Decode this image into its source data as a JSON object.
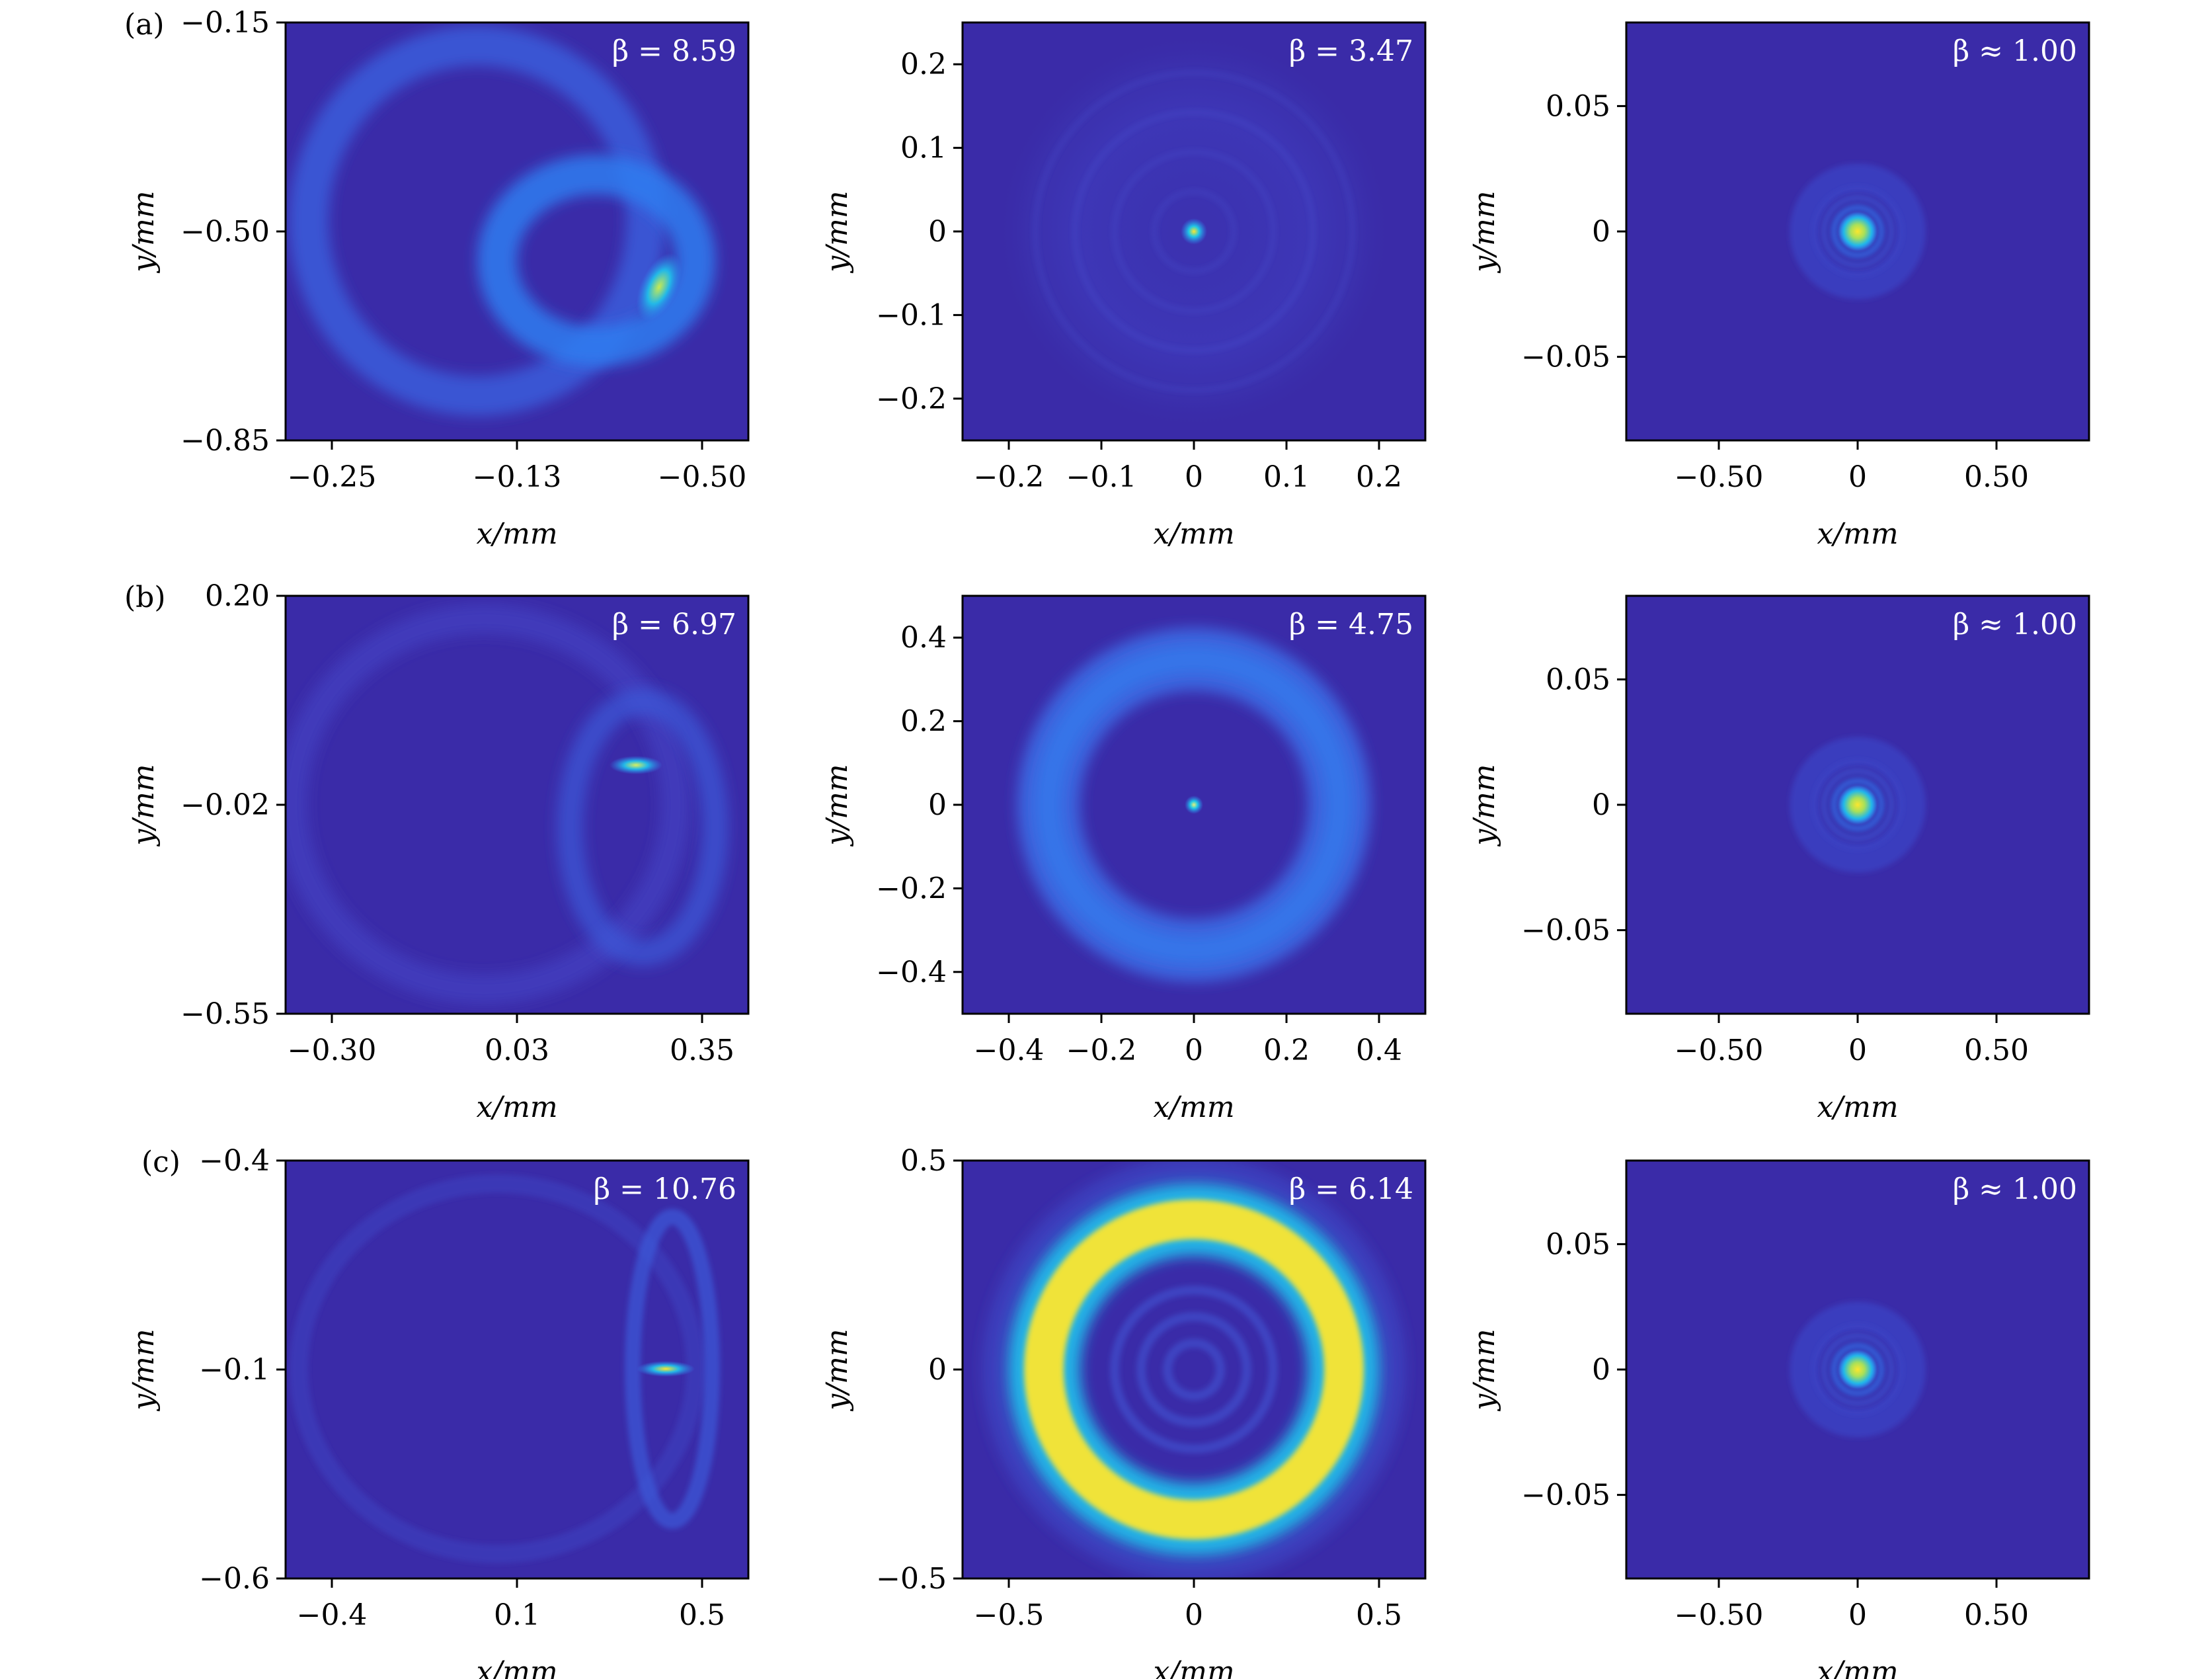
{
  "figure": {
    "row_labels": [
      "(a)",
      "(b)",
      "(c)"
    ],
    "colors": {
      "background": "#3a2ba8",
      "ring_mid": "#2f8cf7",
      "ring_bright": "#1ec8e6",
      "peak": "#fbe62e",
      "axis": "#000000",
      "label_text_on_plot": "#ffffff"
    }
  },
  "chart_data": [
    {
      "type": "heatmap",
      "row": "(a)",
      "col": 1,
      "annotation": "β = 8.59",
      "xlabel": "x/mm",
      "ylabel": "y/mm",
      "xticks": [
        "−0.25",
        "−0.13",
        "−0.50"
      ],
      "yticks": [
        "−0.15",
        "−0.50",
        "−0.85"
      ],
      "pattern": "crescent"
    },
    {
      "type": "heatmap",
      "row": "(a)",
      "col": 2,
      "annotation": "β = 3.47",
      "xlabel": "x/mm",
      "ylabel": "y/mm",
      "xticks": [
        "−0.2",
        "−0.1",
        "0",
        "0.1",
        "0.2"
      ],
      "yticks": [
        "0.2",
        "0.1",
        "0",
        "−0.1",
        "−0.2"
      ],
      "pattern": "faint-disk"
    },
    {
      "type": "heatmap",
      "row": "(a)",
      "col": 3,
      "annotation": "β ≈ 1.00",
      "xlabel": "x/mm",
      "ylabel": "y/mm",
      "xticks": [
        "−0.50",
        "0",
        "0.50"
      ],
      "yticks": [
        "0.05",
        "0",
        "−0.05"
      ],
      "pattern": "airy"
    },
    {
      "type": "heatmap",
      "row": "(b)",
      "col": 1,
      "annotation": "β = 6.97",
      "xlabel": "x/mm",
      "ylabel": "y/mm",
      "xticks": [
        "−0.30",
        "0.03",
        "0.35"
      ],
      "yticks": [
        "0.20",
        "−0.02",
        "−0.55"
      ],
      "pattern": "heart"
    },
    {
      "type": "heatmap",
      "row": "(b)",
      "col": 2,
      "annotation": "β = 4.75",
      "xlabel": "x/mm",
      "ylabel": "y/mm",
      "xticks": [
        "−0.4",
        "−0.2",
        "0",
        "0.2",
        "0.4"
      ],
      "yticks": [
        "0.4",
        "0.2",
        "0",
        "−0.2",
        "−0.4"
      ],
      "pattern": "ring-medium"
    },
    {
      "type": "heatmap",
      "row": "(b)",
      "col": 3,
      "annotation": "β ≈ 1.00",
      "xlabel": "x/mm",
      "ylabel": "y/mm",
      "xticks": [
        "−0.50",
        "0",
        "0.50"
      ],
      "yticks": [
        "0.05",
        "0",
        "−0.05"
      ],
      "pattern": "airy"
    },
    {
      "type": "heatmap",
      "row": "(c)",
      "col": 1,
      "annotation": "β = 10.76",
      "xlabel": "x/mm",
      "ylabel": "y/mm",
      "xticks": [
        "−0.4",
        "0.1",
        "0.5"
      ],
      "yticks": [
        "−0.4",
        "−0.1",
        "−0.6"
      ],
      "pattern": "heart-narrow"
    },
    {
      "type": "heatmap",
      "row": "(c)",
      "col": 2,
      "annotation": "β = 6.14",
      "xlabel": "x/mm",
      "ylabel": "y/mm",
      "xticks": [
        "−0.5",
        "0",
        "0.5"
      ],
      "yticks": [
        "0.5",
        "0",
        "−0.5"
      ],
      "pattern": "ring-bright"
    },
    {
      "type": "heatmap",
      "row": "(c)",
      "col": 3,
      "annotation": "β ≈ 1.00",
      "xlabel": "x/mm",
      "ylabel": "y/mm",
      "xticks": [
        "−0.50",
        "0",
        "0.50"
      ],
      "yticks": [
        "0.05",
        "0",
        "−0.05"
      ],
      "pattern": "airy"
    }
  ]
}
